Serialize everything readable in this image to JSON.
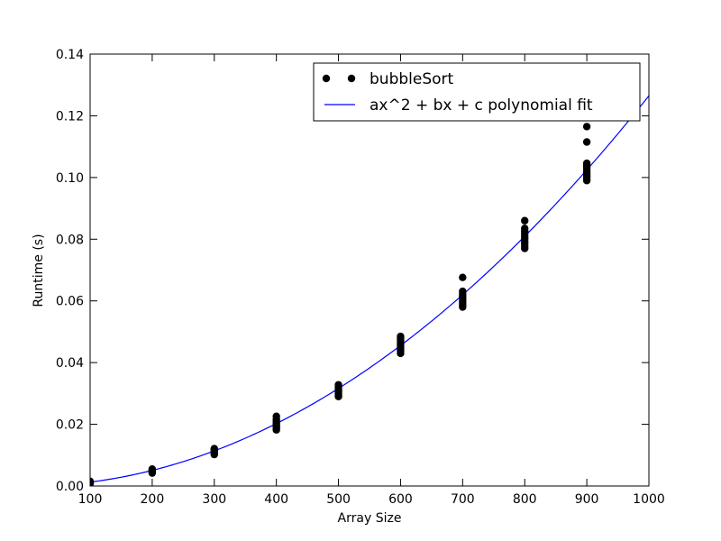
{
  "chart_data": {
    "type": "scatter",
    "title": "",
    "xlabel": "Array Size",
    "ylabel": "Runtime (s)",
    "xlim": [
      100,
      1000
    ],
    "ylim": [
      0.0,
      0.14
    ],
    "x_ticks": [
      "100",
      "200",
      "300",
      "400",
      "500",
      "600",
      "700",
      "800",
      "900",
      "1000"
    ],
    "y_ticks": [
      "0.00",
      "0.02",
      "0.04",
      "0.06",
      "0.08",
      "0.10",
      "0.12",
      "0.14"
    ],
    "grid": false,
    "legend_position": "top-right",
    "series": [
      {
        "name": "bubbleSort",
        "kind": "scatter",
        "color": "#000000",
        "points": [
          [
            100,
            0.0008
          ],
          [
            100,
            0.0011
          ],
          [
            100,
            0.0013
          ],
          [
            100,
            0.0015
          ],
          [
            200,
            0.0042
          ],
          [
            200,
            0.0046
          ],
          [
            200,
            0.0049
          ],
          [
            200,
            0.0052
          ],
          [
            200,
            0.0055
          ],
          [
            300,
            0.0102
          ],
          [
            300,
            0.0106
          ],
          [
            300,
            0.011
          ],
          [
            300,
            0.0114
          ],
          [
            300,
            0.0118
          ],
          [
            300,
            0.0121
          ],
          [
            400,
            0.0182
          ],
          [
            400,
            0.0187
          ],
          [
            400,
            0.0193
          ],
          [
            400,
            0.0198
          ],
          [
            400,
            0.0204
          ],
          [
            400,
            0.021
          ],
          [
            400,
            0.0217
          ],
          [
            400,
            0.0226
          ],
          [
            500,
            0.029
          ],
          [
            500,
            0.0295
          ],
          [
            500,
            0.03
          ],
          [
            500,
            0.0305
          ],
          [
            500,
            0.031
          ],
          [
            500,
            0.0316
          ],
          [
            500,
            0.0322
          ],
          [
            500,
            0.0328
          ],
          [
            600,
            0.043
          ],
          [
            600,
            0.0437
          ],
          [
            600,
            0.0444
          ],
          [
            600,
            0.0451
          ],
          [
            600,
            0.0458
          ],
          [
            600,
            0.0465
          ],
          [
            600,
            0.0472
          ],
          [
            600,
            0.0479
          ],
          [
            600,
            0.0485
          ],
          [
            700,
            0.058
          ],
          [
            700,
            0.0587
          ],
          [
            700,
            0.0594
          ],
          [
            700,
            0.0601
          ],
          [
            700,
            0.0608
          ],
          [
            700,
            0.0616
          ],
          [
            700,
            0.0623
          ],
          [
            700,
            0.0631
          ],
          [
            700,
            0.0676
          ],
          [
            800,
            0.077
          ],
          [
            800,
            0.0778
          ],
          [
            800,
            0.0786
          ],
          [
            800,
            0.0794
          ],
          [
            800,
            0.0802
          ],
          [
            800,
            0.081
          ],
          [
            800,
            0.0818
          ],
          [
            800,
            0.0826
          ],
          [
            800,
            0.0835
          ],
          [
            800,
            0.086
          ],
          [
            900,
            0.099
          ],
          [
            900,
            0.0997
          ],
          [
            900,
            0.1004
          ],
          [
            900,
            0.1011
          ],
          [
            900,
            0.1018
          ],
          [
            900,
            0.1025
          ],
          [
            900,
            0.1032
          ],
          [
            900,
            0.1039
          ],
          [
            900,
            0.1046
          ],
          [
            900,
            0.1115
          ],
          [
            900,
            0.1165
          ]
        ]
      },
      {
        "name": "ax^2 + bx + c polynomial fit",
        "kind": "line",
        "color": "#0000ff",
        "coefficients": {
          "a": 1.265e-07,
          "b": 0.0,
          "c": 0.0
        }
      }
    ]
  }
}
